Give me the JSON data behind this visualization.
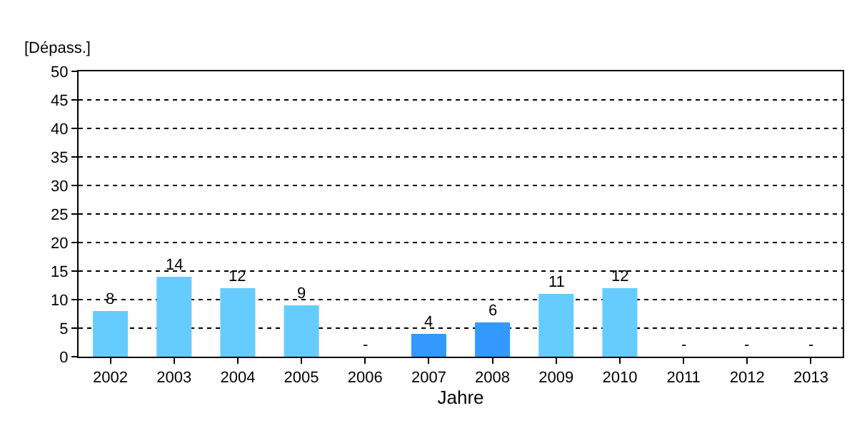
{
  "chart_data": {
    "type": "bar",
    "ylabel": "[Dépass.]",
    "xlabel": "Jahre",
    "categories": [
      "2002",
      "2003",
      "2004",
      "2005",
      "2006",
      "2007",
      "2008",
      "2009",
      "2010",
      "2011",
      "2012",
      "2013"
    ],
    "values": [
      8,
      14,
      12,
      9,
      null,
      4,
      6,
      11,
      12,
      null,
      null,
      null
    ],
    "colors": [
      "#66ccff",
      "#66ccff",
      "#66ccff",
      "#66ccff",
      "#66ccff",
      "#3399ff",
      "#3399ff",
      "#66ccff",
      "#66ccff",
      "#66ccff",
      "#66ccff",
      "#66ccff"
    ],
    "value_labels": [
      "8",
      "14",
      "12",
      "9",
      "-",
      "4",
      "6",
      "11",
      "12",
      "-",
      "-",
      "-"
    ],
    "ylim": [
      0,
      50
    ],
    "yticks": [
      0,
      5,
      10,
      15,
      20,
      25,
      30,
      35,
      40,
      45,
      50
    ],
    "grid": "y"
  }
}
